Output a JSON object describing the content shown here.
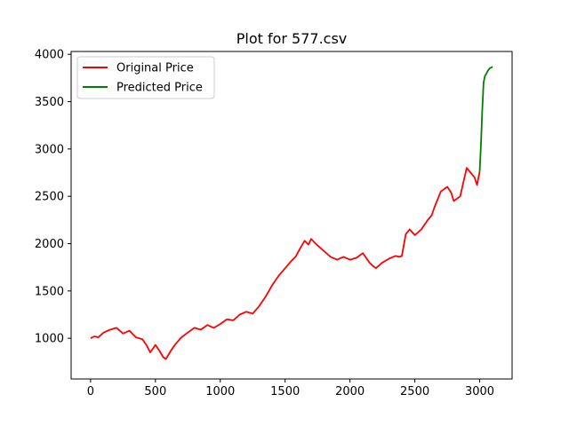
{
  "chart_data": {
    "type": "line",
    "title": "Plot for 577.csv",
    "xlabel": "",
    "ylabel": "",
    "xlim": [
      -150,
      3250
    ],
    "ylim": [
      570,
      4030
    ],
    "x_ticks": [
      0,
      500,
      1000,
      1500,
      2000,
      2500,
      3000
    ],
    "y_ticks": [
      1000,
      1500,
      2000,
      2500,
      3000,
      3500,
      4000
    ],
    "grid": false,
    "legend_position": "top-left",
    "series": [
      {
        "name": "Original Price",
        "color": "#ff0000",
        "x": [
          0,
          30,
          60,
          100,
          150,
          200,
          250,
          300,
          350,
          400,
          430,
          460,
          500,
          530,
          560,
          580,
          620,
          650,
          700,
          750,
          800,
          850,
          900,
          950,
          1000,
          1050,
          1100,
          1150,
          1200,
          1250,
          1300,
          1350,
          1400,
          1450,
          1500,
          1550,
          1580,
          1620,
          1650,
          1680,
          1700,
          1750,
          1800,
          1850,
          1900,
          1950,
          2000,
          2050,
          2100,
          2150,
          2180,
          2200,
          2250,
          2300,
          2350,
          2380,
          2400,
          2430,
          2460,
          2500,
          2550,
          2600,
          2630,
          2650,
          2700,
          2750,
          2780,
          2800,
          2850,
          2900,
          2930,
          2960,
          2980,
          3000
        ],
        "y": [
          1000,
          1020,
          1010,
          1060,
          1090,
          1110,
          1050,
          1080,
          1010,
          990,
          930,
          850,
          930,
          870,
          800,
          780,
          870,
          930,
          1010,
          1060,
          1110,
          1090,
          1140,
          1110,
          1150,
          1200,
          1190,
          1250,
          1280,
          1260,
          1340,
          1440,
          1560,
          1660,
          1740,
          1820,
          1860,
          1960,
          2030,
          1990,
          2050,
          1980,
          1920,
          1860,
          1830,
          1860,
          1830,
          1850,
          1900,
          1800,
          1760,
          1740,
          1800,
          1840,
          1870,
          1860,
          1870,
          2100,
          2150,
          2090,
          2150,
          2250,
          2300,
          2380,
          2550,
          2600,
          2540,
          2450,
          2500,
          2800,
          2750,
          2700,
          2620,
          2760
        ]
      },
      {
        "name": "Predicted Price",
        "color": "#008000",
        "x": [
          3000,
          3010,
          3020,
          3030,
          3040,
          3050,
          3060,
          3075,
          3090,
          3100
        ],
        "y": [
          2760,
          3050,
          3400,
          3700,
          3770,
          3790,
          3820,
          3850,
          3860,
          3870
        ]
      }
    ]
  }
}
